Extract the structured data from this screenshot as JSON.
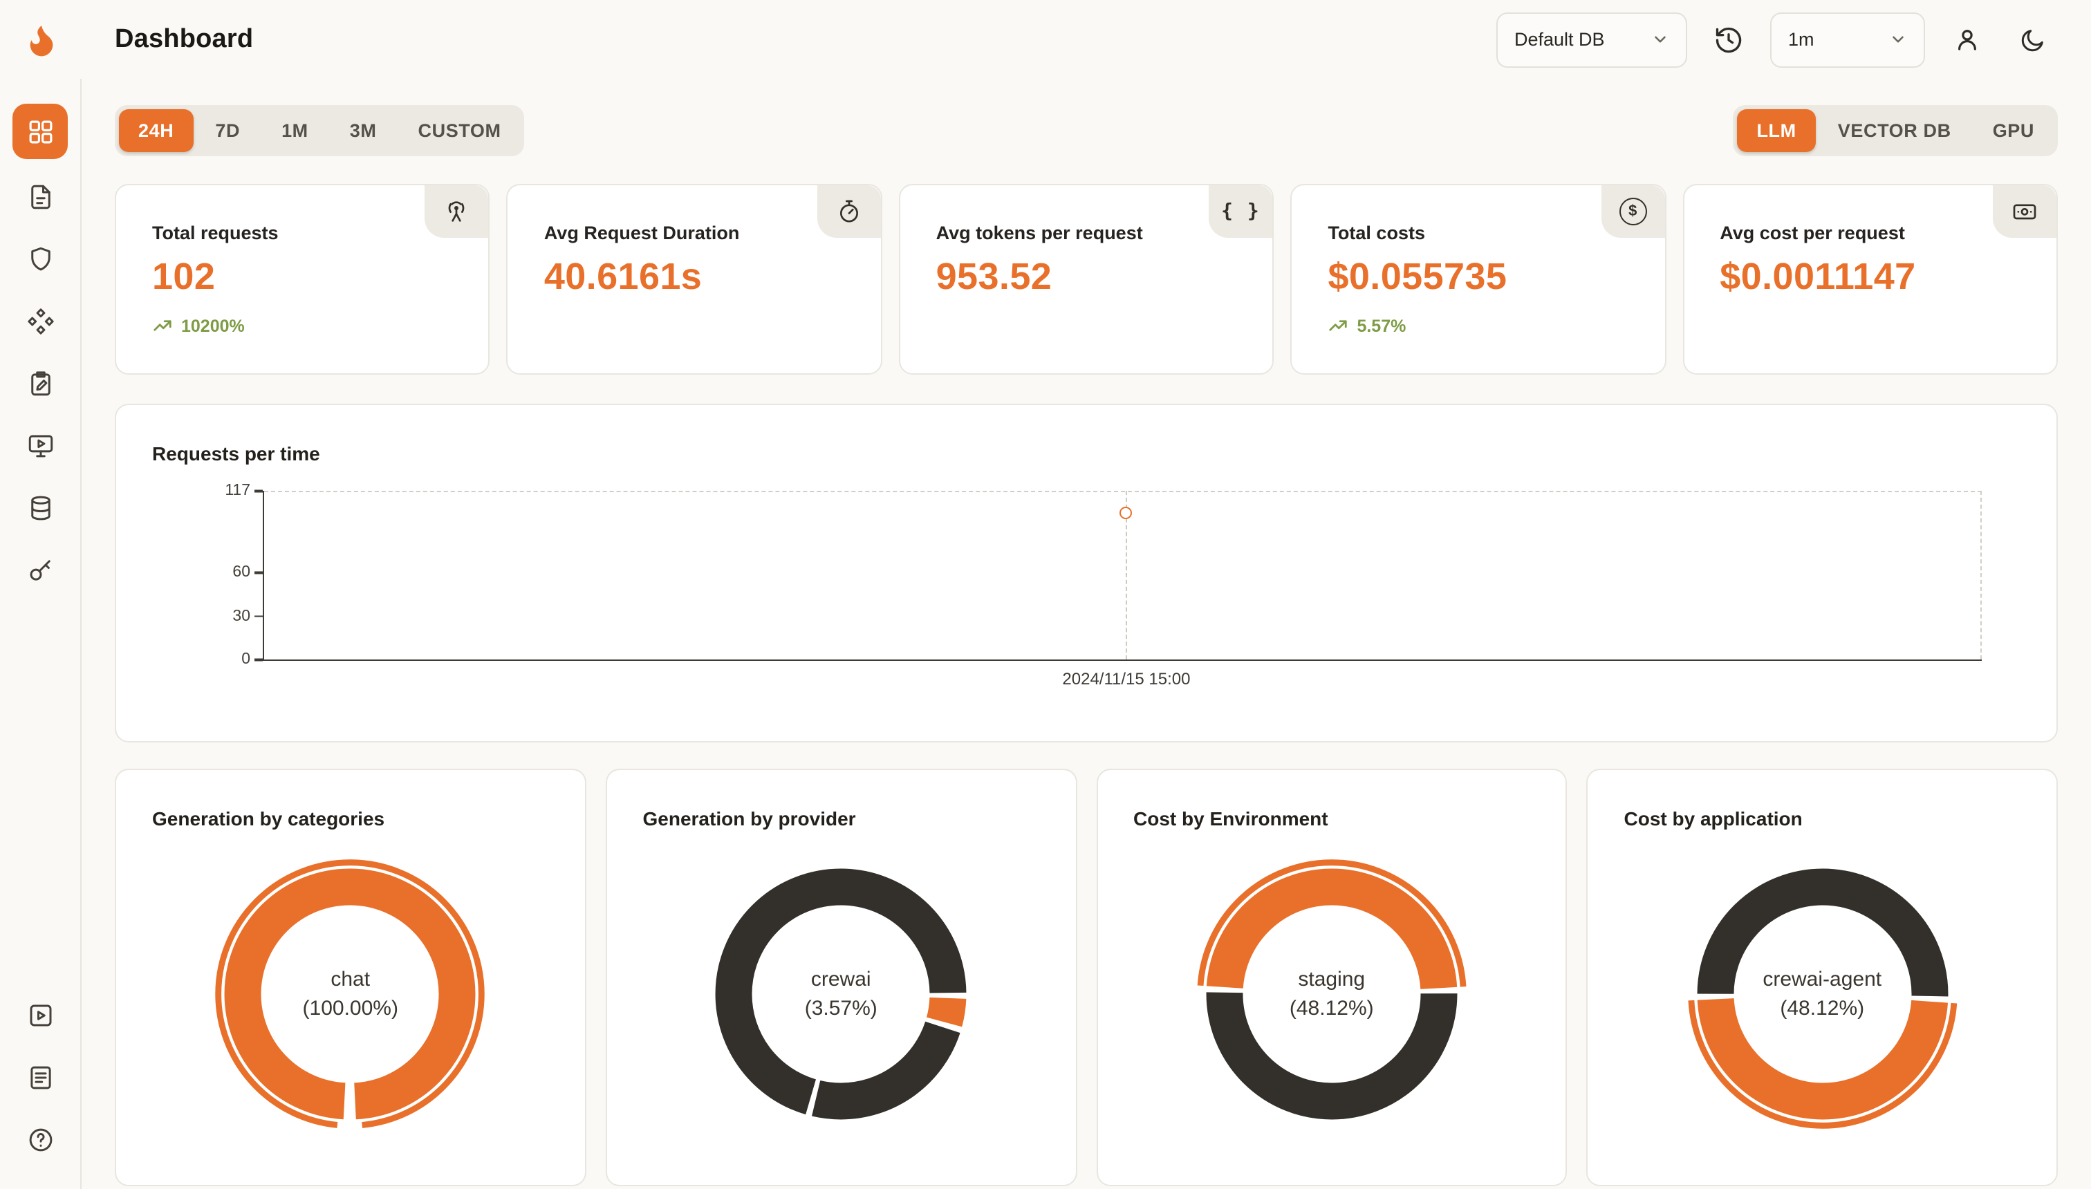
{
  "theme": {
    "accent": "#E8702A",
    "donut_dark": "#33302B",
    "positive_green": "#7E9B45"
  },
  "header": {
    "title": "Dashboard",
    "db_selector": {
      "value": "Default DB"
    },
    "interval_selector": {
      "value": "1m"
    }
  },
  "filters": {
    "time_ranges": {
      "active": "24H",
      "items": [
        "24H",
        "7D",
        "1M",
        "3M",
        "CUSTOM"
      ]
    },
    "sources": {
      "active": "LLM",
      "items": [
        "LLM",
        "VECTOR DB",
        "GPU"
      ]
    }
  },
  "stat_cards": [
    {
      "title": "Total requests",
      "value": "102",
      "delta": "10200%"
    },
    {
      "title": "Avg Request Duration",
      "value": "40.6161s"
    },
    {
      "title": "Avg tokens per request",
      "value": "953.52"
    },
    {
      "title": "Total costs",
      "value": "$0.055735",
      "delta": "5.57%"
    },
    {
      "title": "Avg cost per request",
      "value": "$0.0011147"
    }
  ],
  "icons": {
    "braces": "{ }",
    "dollar": "$"
  },
  "chart_data": [
    {
      "type": "line",
      "title": "Requests per time",
      "x_labels": [
        "2024/11/15 15:00"
      ],
      "series": [
        {
          "name": "requests",
          "values": [
            102
          ]
        }
      ],
      "y_ticks": [
        0,
        30,
        60,
        117
      ],
      "ylim": [
        0,
        117
      ],
      "legend": "none",
      "grid": "dashed-frame",
      "point_x_frac": 0.502
    },
    {
      "type": "pie",
      "title": "Generation by categories",
      "center_label": "chat",
      "center_value": "(100.00%)",
      "slices": [
        {
          "name": "chat",
          "pct": 100.0,
          "color": "#E8702A"
        }
      ],
      "render": {
        "segments": [
          {
            "color": "#E8702A",
            "s": 0.508,
            "e": 1.492
          }
        ],
        "outer_arc": {
          "s": 0.515,
          "e": 1.485
        }
      }
    },
    {
      "type": "pie",
      "title": "Generation by provider",
      "center_label": "crewai",
      "center_value": "(3.57%)",
      "slices": [
        {
          "name": "crewai",
          "pct": 3.57,
          "color": "#E8702A"
        },
        {
          "name": "other",
          "pct": 96.43,
          "color": "#33302B"
        }
      ],
      "render": {
        "segments": [
          {
            "color": "#33302B",
            "s": 0.3,
            "e": 0.537
          },
          {
            "color": "#33302B",
            "s": 0.545,
            "e": 1.248
          },
          {
            "color": "#E8702A",
            "s": 0.256,
            "e": 0.292
          }
        ]
      }
    },
    {
      "type": "pie",
      "title": "Cost by Environment",
      "center_label": "staging",
      "center_value": "(48.12%)",
      "slices": [
        {
          "name": "staging",
          "pct": 48.12,
          "color": "#E8702A"
        },
        {
          "name": "other",
          "pct": 51.88,
          "color": "#33302B"
        }
      ],
      "render": {
        "segments": [
          {
            "color": "#E8702A",
            "s": 0.76,
            "e": 1.241
          },
          {
            "color": "#33302B",
            "s": 0.249,
            "e": 0.752
          }
        ],
        "outer_arc": {
          "s": 0.76,
          "e": 1.241
        }
      }
    },
    {
      "type": "pie",
      "title": "Cost by application",
      "center_label": "crewai-agent",
      "center_value": "(48.12%)",
      "slices": [
        {
          "name": "crewai-agent",
          "pct": 48.12,
          "color": "#E8702A"
        },
        {
          "name": "other",
          "pct": 51.88,
          "color": "#33302B"
        }
      ],
      "render": {
        "segments": [
          {
            "color": "#E8702A",
            "s": 0.261,
            "e": 0.742
          },
          {
            "color": "#33302B",
            "s": 0.75,
            "e": 1.253
          }
        ],
        "outer_arc": {
          "s": 0.261,
          "e": 0.742
        }
      }
    }
  ]
}
